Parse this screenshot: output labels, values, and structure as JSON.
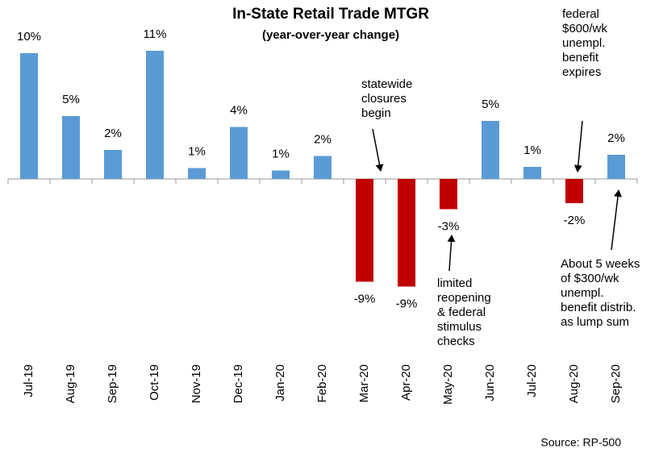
{
  "chart_data": {
    "type": "bar",
    "title": "In-State Retail Trade MTGR",
    "subtitle": "(year-over-year change)",
    "source": "Source: RP-500",
    "categories": [
      "Jul-19",
      "Aug-19",
      "Sep-19",
      "Oct-19",
      "Nov-19",
      "Dec-19",
      "Jan-20",
      "Feb-20",
      "Mar-20",
      "Apr-20",
      "May-20",
      "Jun-20",
      "Jul-20",
      "Aug-20",
      "Sep-20"
    ],
    "values": [
      10.4,
      5.2,
      2.4,
      10.6,
      0.9,
      4.3,
      0.7,
      1.9,
      -8.5,
      -8.9,
      -2.5,
      4.8,
      1.0,
      -2.0,
      2.0
    ],
    "value_labels": [
      "10%",
      "5%",
      "2%",
      "11%",
      "1%",
      "4%",
      "1%",
      "2%",
      "-9%",
      "-9%",
      "-3%",
      "5%",
      "1%",
      "-2%",
      "2%"
    ],
    "color": "#5b9bd5",
    "negative_color": "#c00000",
    "ylim": [
      -10,
      12
    ],
    "annotations": [
      {
        "lines": [
          "statewide",
          "closures",
          "begin"
        ]
      },
      {
        "lines": [
          "limited",
          "reopening",
          "& federal",
          "stimulus",
          "checks"
        ]
      },
      {
        "lines": [
          "federal",
          "$600/wk",
          "unempl.",
          "benefit",
          "expires"
        ]
      },
      {
        "lines": [
          "About 5 weeks",
          "of $300/wk",
          "unempl.",
          "benefit distrib.",
          "as lump sum"
        ]
      }
    ]
  }
}
